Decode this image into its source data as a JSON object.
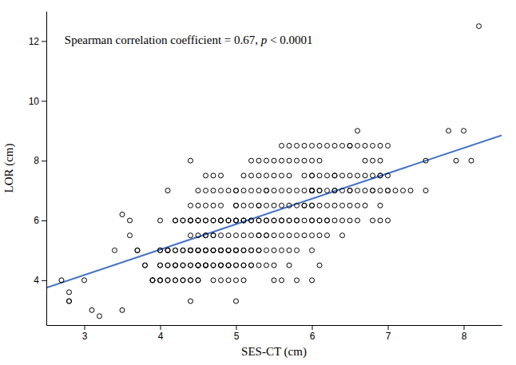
{
  "chart_data": {
    "type": "scatter",
    "xlabel": "SES-CT (cm)",
    "ylabel": "LOR (cm)",
    "annotation": [
      "Spearman correlation coefficient = 0.67, ",
      "p",
      " < 0.0001"
    ],
    "xlim": [
      2.5,
      8.5
    ],
    "ylim": [
      2.5,
      13.0
    ],
    "xticks": [
      3,
      4,
      5,
      6,
      7,
      8
    ],
    "yticks": [
      4,
      6,
      8,
      10,
      12
    ],
    "grid": false,
    "series": [
      {
        "type": "scatter",
        "color": "black",
        "marker": "circle-open",
        "x": [
          2.7,
          2.8,
          2.8,
          2.8,
          3.0,
          3.1,
          3.2,
          3.4,
          3.5,
          3.5,
          3.6,
          3.6,
          3.7,
          3.7,
          3.8,
          3.8,
          3.9,
          3.9,
          3.9,
          4.0,
          4.0,
          4.0,
          4.0,
          4.0,
          4.0,
          4.0,
          4.0,
          4.1,
          4.1,
          4.1,
          4.1,
          4.1,
          4.1,
          4.1,
          4.1,
          4.2,
          4.2,
          4.2,
          4.2,
          4.2,
          4.2,
          4.2,
          4.2,
          4.2,
          4.3,
          4.3,
          4.3,
          4.3,
          4.3,
          4.3,
          4.3,
          4.3,
          4.4,
          4.4,
          4.4,
          4.4,
          4.4,
          4.4,
          4.4,
          4.4,
          4.4,
          4.4,
          4.4,
          4.4,
          4.4,
          4.4,
          4.5,
          4.5,
          4.5,
          4.5,
          4.5,
          4.5,
          4.5,
          4.5,
          4.5,
          4.5,
          4.5,
          4.5,
          4.5,
          4.5,
          4.5,
          4.5,
          4.6,
          4.6,
          4.6,
          4.6,
          4.6,
          4.6,
          4.6,
          4.6,
          4.6,
          4.6,
          4.6,
          4.6,
          4.6,
          4.6,
          4.7,
          4.7,
          4.7,
          4.7,
          4.7,
          4.7,
          4.7,
          4.7,
          4.7,
          4.7,
          4.7,
          4.7,
          4.7,
          4.8,
          4.8,
          4.8,
          4.8,
          4.8,
          4.8,
          4.8,
          4.8,
          4.8,
          4.8,
          4.8,
          4.8,
          4.8,
          4.8,
          4.9,
          4.9,
          4.9,
          4.9,
          4.9,
          4.9,
          4.9,
          4.9,
          4.9,
          4.9,
          4.9,
          4.9,
          5.0,
          5.0,
          5.0,
          5.0,
          5.0,
          5.0,
          5.0,
          5.0,
          5.0,
          5.0,
          5.0,
          5.0,
          5.0,
          5.0,
          5.0,
          5.1,
          5.1,
          5.1,
          5.1,
          5.1,
          5.1,
          5.1,
          5.1,
          5.1,
          5.1,
          5.1,
          5.1,
          5.2,
          5.2,
          5.2,
          5.2,
          5.2,
          5.2,
          5.2,
          5.2,
          5.2,
          5.2,
          5.2,
          5.3,
          5.3,
          5.3,
          5.3,
          5.3,
          5.3,
          5.3,
          5.3,
          5.3,
          5.3,
          5.3,
          5.3,
          5.4,
          5.4,
          5.4,
          5.4,
          5.4,
          5.4,
          5.4,
          5.4,
          5.4,
          5.4,
          5.4,
          5.5,
          5.5,
          5.5,
          5.5,
          5.5,
          5.5,
          5.5,
          5.5,
          5.5,
          5.5,
          5.6,
          5.6,
          5.6,
          5.6,
          5.6,
          5.6,
          5.6,
          5.6,
          5.6,
          5.6,
          5.7,
          5.7,
          5.7,
          5.7,
          5.7,
          5.7,
          5.7,
          5.7,
          5.7,
          5.7,
          5.8,
          5.8,
          5.8,
          5.8,
          5.8,
          5.8,
          5.8,
          5.8,
          5.8,
          5.9,
          5.9,
          5.9,
          5.9,
          5.9,
          5.9,
          5.9,
          5.9,
          6.0,
          6.0,
          6.0,
          6.0,
          6.0,
          6.0,
          6.0,
          6.0,
          6.0,
          6.0,
          6.0,
          6.0,
          6.0,
          6.0,
          6.0,
          6.1,
          6.1,
          6.1,
          6.1,
          6.1,
          6.1,
          6.1,
          6.1,
          6.1,
          6.1,
          6.2,
          6.2,
          6.2,
          6.2,
          6.2,
          6.2,
          6.2,
          6.3,
          6.3,
          6.3,
          6.3,
          6.3,
          6.3,
          6.3,
          6.4,
          6.4,
          6.4,
          6.4,
          6.4,
          6.4,
          6.5,
          6.5,
          6.5,
          6.5,
          6.5,
          6.5,
          6.5,
          6.6,
          6.6,
          6.6,
          6.6,
          6.6,
          6.6,
          6.7,
          6.7,
          6.7,
          6.7,
          6.7,
          6.8,
          6.8,
          6.8,
          6.8,
          6.8,
          6.8,
          6.9,
          6.9,
          6.9,
          6.9,
          6.9,
          6.9,
          6.9,
          7.0,
          7.0,
          7.0,
          7.0,
          7.0,
          7.1,
          7.2,
          7.3,
          7.5,
          7.5,
          7.8,
          7.9,
          8.0,
          8.1,
          8.2
        ],
        "values": [
          4.0,
          3.6,
          3.3,
          3.3,
          4.0,
          3.0,
          2.8,
          5.0,
          3.0,
          6.2,
          6.0,
          5.5,
          5.0,
          5.0,
          4.5,
          4.5,
          4.0,
          4.0,
          4.0,
          6.0,
          5.0,
          5.0,
          4.5,
          4.5,
          4.0,
          4.0,
          4.0,
          7.0,
          5.0,
          5.0,
          5.0,
          4.5,
          4.5,
          4.0,
          4.0,
          6.0,
          6.0,
          5.0,
          5.0,
          4.5,
          4.5,
          4.5,
          4.0,
          4.0,
          6.0,
          6.0,
          5.0,
          5.0,
          4.5,
          4.5,
          4.0,
          4.0,
          8.0,
          6.5,
          6.0,
          6.0,
          6.0,
          5.5,
          5.0,
          5.0,
          5.0,
          4.5,
          4.5,
          4.0,
          4.0,
          3.3,
          7.0,
          6.5,
          6.0,
          6.0,
          6.0,
          5.5,
          5.0,
          5.0,
          5.0,
          5.0,
          4.5,
          4.5,
          4.5,
          4.5,
          4.0,
          4.0,
          7.5,
          7.0,
          6.5,
          6.0,
          6.0,
          5.5,
          5.5,
          5.0,
          5.0,
          5.0,
          4.5,
          4.5,
          4.5,
          4.5,
          7.5,
          7.0,
          6.5,
          6.0,
          6.0,
          5.5,
          5.5,
          5.0,
          5.0,
          5.0,
          4.5,
          4.5,
          4.0,
          7.5,
          7.0,
          6.5,
          6.0,
          6.0,
          6.0,
          5.5,
          5.0,
          5.0,
          5.0,
          4.5,
          4.5,
          4.5,
          4.0,
          7.0,
          6.0,
          6.0,
          6.0,
          5.5,
          5.0,
          5.0,
          5.0,
          4.5,
          4.5,
          4.5,
          4.0,
          7.0,
          7.0,
          6.5,
          6.5,
          6.0,
          6.0,
          6.0,
          5.5,
          5.0,
          5.0,
          5.0,
          4.5,
          4.5,
          4.0,
          3.3,
          7.5,
          7.0,
          6.5,
          6.0,
          6.0,
          6.0,
          5.5,
          5.0,
          5.0,
          4.5,
          4.5,
          4.0,
          8.0,
          7.5,
          7.0,
          6.5,
          6.0,
          6.0,
          5.5,
          5.0,
          5.0,
          4.5,
          4.5,
          8.0,
          7.5,
          7.0,
          6.5,
          6.5,
          6.0,
          6.0,
          5.5,
          5.5,
          5.0,
          5.0,
          4.5,
          8.0,
          7.5,
          7.0,
          7.0,
          6.5,
          6.0,
          6.0,
          5.5,
          5.5,
          5.0,
          4.5,
          8.0,
          7.5,
          7.0,
          6.5,
          6.0,
          6.0,
          5.5,
          5.0,
          4.5,
          4.0,
          8.5,
          8.0,
          7.5,
          7.0,
          6.5,
          6.0,
          6.0,
          5.5,
          5.0,
          4.0,
          8.5,
          8.0,
          7.5,
          7.0,
          6.5,
          6.0,
          6.0,
          5.5,
          5.0,
          4.5,
          8.5,
          8.0,
          7.0,
          6.5,
          6.0,
          6.0,
          5.5,
          5.0,
          4.0,
          8.5,
          8.0,
          7.5,
          7.0,
          6.5,
          6.5,
          6.0,
          5.5,
          8.5,
          8.0,
          7.5,
          7.5,
          7.0,
          7.0,
          7.0,
          7.0,
          6.5,
          6.5,
          6.0,
          6.0,
          5.5,
          5.0,
          4.0,
          8.5,
          8.0,
          7.5,
          7.0,
          7.0,
          6.5,
          6.0,
          6.0,
          5.5,
          4.5,
          8.5,
          7.5,
          7.0,
          6.5,
          6.0,
          6.0,
          5.5,
          8.5,
          7.5,
          7.5,
          7.0,
          7.0,
          6.5,
          6.0,
          8.5,
          7.5,
          7.0,
          6.5,
          6.0,
          5.5,
          8.5,
          8.5,
          7.5,
          7.0,
          7.0,
          6.5,
          6.0,
          9.0,
          8.5,
          7.5,
          7.0,
          6.5,
          6.0,
          8.5,
          8.0,
          7.5,
          7.0,
          6.5,
          8.5,
          8.0,
          7.5,
          7.0,
          7.0,
          6.0,
          8.5,
          8.0,
          7.5,
          7.5,
          7.0,
          6.5,
          6.0,
          8.5,
          7.5,
          7.0,
          7.0,
          6.0,
          7.0,
          7.0,
          7.0,
          8.0,
          7.0,
          9.0,
          8.0,
          9.0,
          8.0,
          12.5
        ]
      },
      {
        "type": "line",
        "color": "#4472C4",
        "line_style": "solid",
        "x": [
          2.5,
          8.5
        ],
        "values": [
          3.75,
          8.85
        ]
      }
    ]
  }
}
